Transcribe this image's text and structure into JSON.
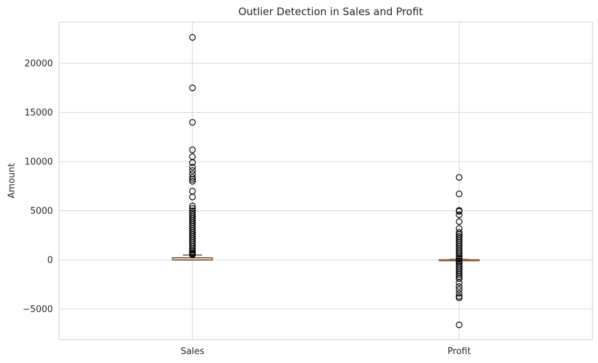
{
  "chart_data": {
    "type": "box",
    "title": "Outlier Detection in Sales and Profit",
    "xlabel": "",
    "ylabel": "Amount",
    "ylim": [
      -8100,
      24200
    ],
    "yticks": [
      -5000,
      0,
      5000,
      10000,
      15000,
      20000
    ],
    "grid": true,
    "categories": [
      "Sales",
      "Profit"
    ],
    "boxes": [
      {
        "category": "Sales",
        "q1": 17,
        "median": 54,
        "q3": 210,
        "whisker_low": 0.4,
        "whisker_high": 498,
        "outliers": [
          22638,
          17500,
          14000,
          11200,
          10500,
          9900,
          9450,
          9100,
          8750,
          8400,
          8200,
          8000,
          7000,
          6400,
          5500,
          5250,
          5000,
          4800,
          4600,
          4400,
          4200,
          4000,
          3800,
          3600,
          3400,
          3200,
          3000,
          2800,
          2600,
          2400,
          2200,
          2000,
          1800,
          1600,
          1400,
          1200,
          1000,
          850,
          700,
          600,
          520
        ]
      },
      {
        "category": "Profit",
        "q1": 1.7,
        "median": 8.7,
        "q3": 29.4,
        "whisker_low": -39,
        "whisker_high": 70,
        "outliers": [
          8400,
          6720,
          5040,
          4950,
          4600,
          3900,
          3200,
          2800,
          2600,
          2400,
          2200,
          2000,
          1800,
          1600,
          1400,
          1200,
          1000,
          800,
          600,
          400,
          200,
          120,
          -80,
          -150,
          -300,
          -500,
          -700,
          -900,
          -1100,
          -1300,
          -1500,
          -1700,
          -1900,
          -2300,
          -2700,
          -3000,
          -3400,
          -3700,
          -3850,
          -6600
        ]
      }
    ],
    "colors": {
      "box": "#000000",
      "median": "#e1812c",
      "grid": "#cccccc",
      "flier": "#000000"
    }
  }
}
